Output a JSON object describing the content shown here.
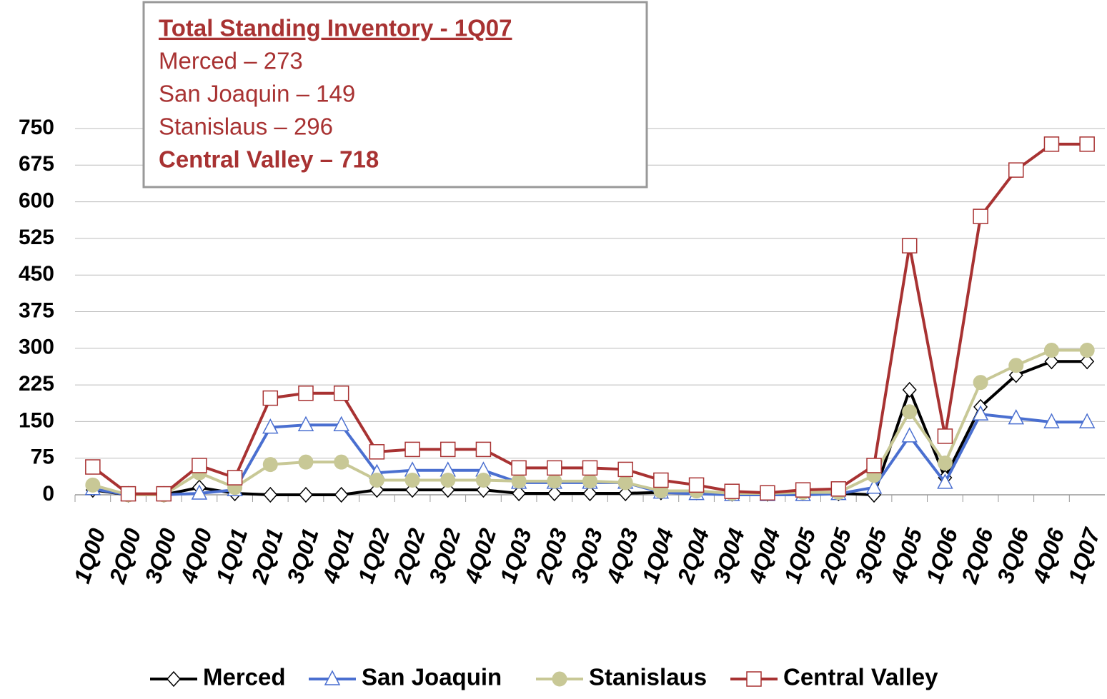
{
  "chart_data": {
    "type": "line",
    "annotation": {
      "title": "Total Standing Inventory - 1Q07",
      "lines": [
        "Merced – 273",
        "San Joaquin – 149",
        "Stanislaus – 296"
      ],
      "total": "Central Valley – 718"
    },
    "categories": [
      "1Q00",
      "2Q00",
      "3Q00",
      "4Q00",
      "1Q01",
      "2Q01",
      "3Q01",
      "4Q01",
      "1Q02",
      "2Q02",
      "3Q02",
      "4Q02",
      "1Q03",
      "2Q03",
      "3Q03",
      "4Q03",
      "1Q04",
      "2Q04",
      "3Q04",
      "4Q04",
      "1Q05",
      "2Q05",
      "3Q05",
      "4Q05",
      "1Q06",
      "2Q06",
      "3Q06",
      "4Q06",
      "1Q07"
    ],
    "series": [
      {
        "name": "Merced",
        "color": "#000000",
        "marker": "diamond",
        "values": [
          10,
          0,
          0,
          15,
          3,
          0,
          0,
          0,
          10,
          10,
          10,
          10,
          3,
          3,
          3,
          3,
          5,
          5,
          2,
          2,
          3,
          3,
          0,
          215,
          35,
          180,
          245,
          273,
          273
        ]
      },
      {
        "name": "San Joaquin",
        "color": "#4a6fd0",
        "marker": "triangle",
        "values": [
          12,
          0,
          0,
          3,
          10,
          138,
          143,
          143,
          45,
          50,
          50,
          50,
          25,
          25,
          25,
          25,
          5,
          2,
          0,
          0,
          0,
          2,
          15,
          120,
          25,
          165,
          157,
          149,
          149
        ]
      },
      {
        "name": "Stanislaus",
        "color": "#c8c896",
        "marker": "circle",
        "values": [
          20,
          0,
          0,
          45,
          15,
          62,
          67,
          67,
          30,
          30,
          30,
          30,
          28,
          28,
          28,
          25,
          8,
          8,
          3,
          3,
          5,
          5,
          40,
          170,
          65,
          230,
          265,
          296,
          296
        ]
      },
      {
        "name": "Central Valley",
        "color": "#a83232",
        "marker": "square",
        "values": [
          57,
          2,
          2,
          60,
          35,
          198,
          208,
          208,
          88,
          93,
          93,
          93,
          55,
          55,
          55,
          52,
          30,
          20,
          7,
          4,
          10,
          12,
          60,
          510,
          120,
          570,
          665,
          718,
          718
        ]
      }
    ],
    "ylim": [
      0,
      750
    ],
    "yticks": [
      0,
      75,
      150,
      225,
      300,
      375,
      450,
      525,
      600,
      675,
      750
    ],
    "grid": true,
    "legend": "bottom"
  }
}
